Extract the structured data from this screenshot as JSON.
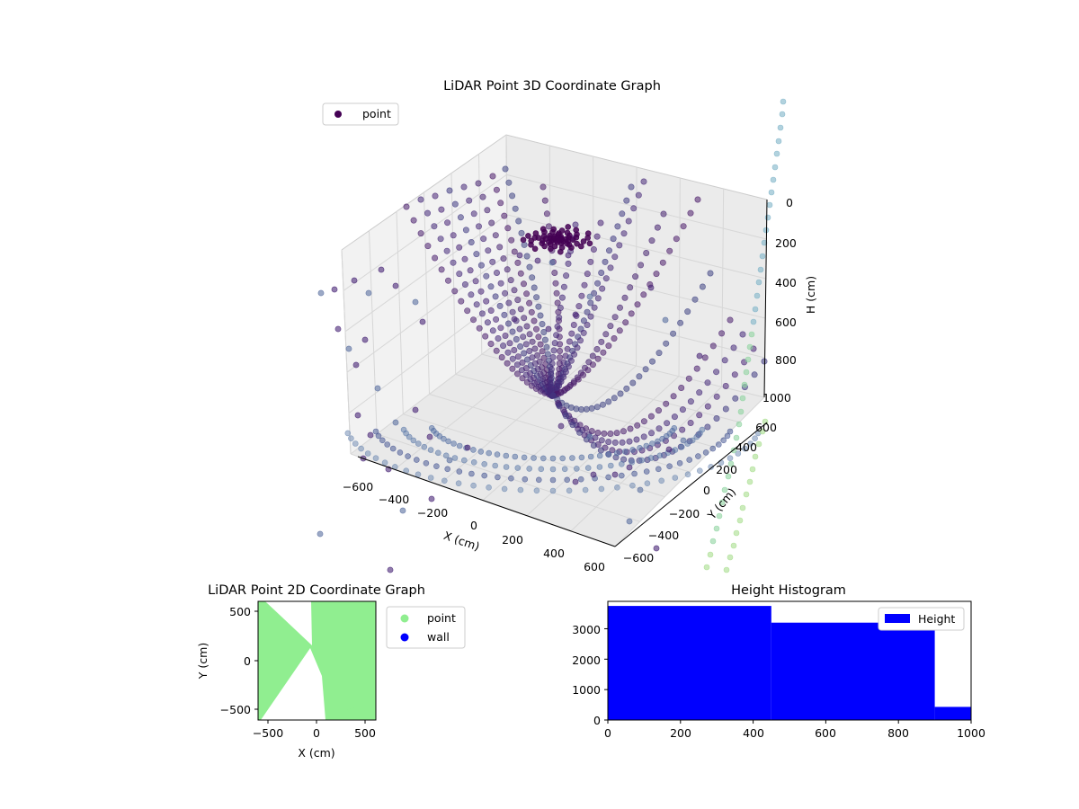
{
  "chart_data": [
    {
      "type": "scatter",
      "title": "LiDAR Point 3D Coordinate Graph",
      "xlabel": "X (cm)",
      "ylabel": "Y (cm)",
      "zlabel": "H (cm)",
      "xlim": [
        -600,
        600
      ],
      "ylim": [
        -600,
        600
      ],
      "zlim": [
        1000,
        0
      ],
      "x_ticks": [
        "−600",
        "−400",
        "−200",
        "0",
        "200",
        "400",
        "600"
      ],
      "y_ticks": [
        "−600",
        "−400",
        "−200",
        "0",
        "200",
        "400",
        "600"
      ],
      "z_ticks": [
        "0",
        "200",
        "400",
        "600",
        "800",
        "1000"
      ],
      "legend": [
        {
          "label": "point",
          "color": "#440154"
        }
      ],
      "legend_position": "top-left",
      "colormap": "viridis",
      "grid": true
    },
    {
      "type": "scatter",
      "title": "LiDAR Point 2D Coordinate Graph",
      "xlabel": "X (cm)",
      "ylabel": "Y (cm)",
      "xlim": [
        -600,
        600
      ],
      "ylim": [
        -600,
        600
      ],
      "x_ticks": [
        "−500",
        "0",
        "500"
      ],
      "y_ticks": [
        "500",
        "0",
        "−500"
      ],
      "legend": [
        {
          "label": "point",
          "color": "#90ee90"
        },
        {
          "label": "wall",
          "color": "#0000ff"
        }
      ],
      "legend_position": "outside-right"
    },
    {
      "type": "bar",
      "title": "Height Histogram",
      "bins": [
        [
          0,
          450
        ],
        [
          450,
          900
        ],
        [
          900,
          1000
        ]
      ],
      "values": [
        3750,
        3200,
        430
      ],
      "color": "#0000ff",
      "xlim": [
        0,
        1000
      ],
      "ylim": [
        0,
        3900
      ],
      "x_ticks": [
        "0",
        "200",
        "400",
        "600",
        "800",
        "1000"
      ],
      "y_ticks": [
        "0",
        "1000",
        "2000",
        "3000"
      ],
      "legend": [
        {
          "label": "Height",
          "color": "#0000ff"
        }
      ],
      "legend_position": "top-right"
    }
  ]
}
